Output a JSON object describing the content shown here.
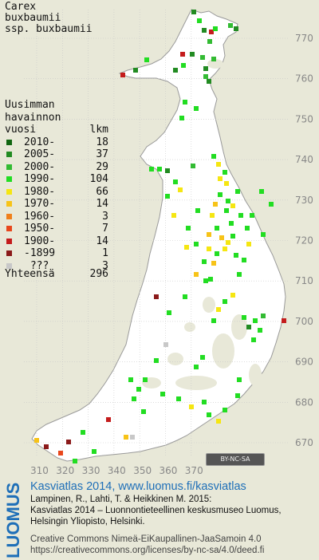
{
  "species": {
    "line1": "Carex",
    "line2": "buxbaumii",
    "line3": "ssp. buxbaumii"
  },
  "legend": {
    "heading": [
      "Uusimman",
      "havainnon",
      "vuosi"
    ],
    "count_header": "lkm",
    "rows": [
      {
        "label": "2010-",
        "count": "18",
        "color": "#116611"
      },
      {
        "label": "2005-",
        "count": "37",
        "color": "#228b22"
      },
      {
        "label": "2000-",
        "count": "29",
        "color": "#33bb33"
      },
      {
        "label": "1990-",
        "count": "104",
        "color": "#22dd22"
      },
      {
        "label": "1980-",
        "count": "66",
        "color": "#f5e612"
      },
      {
        "label": "1970-",
        "count": "14",
        "color": "#f7c318"
      },
      {
        "label": "1960-",
        "count": "3",
        "color": "#f07f1a"
      },
      {
        "label": "1950-",
        "count": "7",
        "color": "#e8471c"
      },
      {
        "label": "1900-",
        "count": "14",
        "color": "#c41c1c"
      },
      {
        "label": "-1899",
        "count": "1",
        "color": "#8b1a1a"
      },
      {
        "label": " ???",
        "count": "3",
        "color": "#c8c8c8"
      }
    ],
    "total_label": "Yhteensä",
    "total_count": "296"
  },
  "axes": {
    "x_ticks": [
      "310",
      "320",
      "330",
      "340",
      "350",
      "360",
      "370"
    ],
    "y_ticks": [
      "770",
      "760",
      "750",
      "740",
      "730",
      "720",
      "710",
      "700",
      "690",
      "680",
      "670"
    ]
  },
  "license_badge": "BY-NC-SA",
  "logo": "LUOMUS",
  "credits": {
    "title": "Kasviatlas 2014, www.luomus.fi/kasviatlas",
    "authors": "Lampinen, R., Lahti, T. & Heikkinen M. 2015:",
    "pub1": "Kasviatlas 2014 – Luonnontieteellinen keskusmuseo Luomus,",
    "pub2": "Helsingin Yliopisto, Helsinki.",
    "cc1": "Creative Commons Nimeä-EiKaupallinen-JaaSamoin 4.0",
    "cc2": "https://creativecommons.org/licenses/by-nc-sa/4.0/deed.fi"
  },
  "map_colors": {
    "land": "#ffffff",
    "sea": "#e8e8d8",
    "grid": "#c8c8c8",
    "lakes": "#e8e8d8"
  }
}
